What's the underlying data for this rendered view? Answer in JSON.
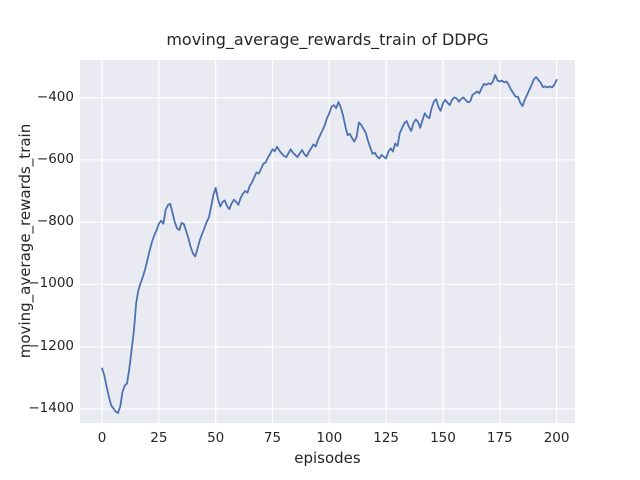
{
  "chart_data": {
    "type": "line",
    "title": "moving_average_rewards_train of DDPG",
    "xlabel": "episodes",
    "ylabel": "moving_average_rewards_train",
    "grid": true,
    "legend": "none",
    "xlim": [
      -9.7,
      208.1
    ],
    "ylim": [
      -1445,
      -279
    ],
    "xticks": {
      "values": [
        0,
        25,
        50,
        75,
        100,
        125,
        150,
        175,
        200
      ],
      "labels": [
        "0",
        "25",
        "50",
        "75",
        "100",
        "125",
        "150",
        "175",
        "200"
      ]
    },
    "yticks": {
      "values": [
        -400,
        -600,
        -800,
        -1000,
        -1200,
        -1400
      ],
      "labels": [
        "−400",
        "−600",
        "−800",
        "−1000",
        "−1200",
        "−1400"
      ]
    },
    "style": {
      "figure_bg": "#FFFFFF",
      "axes_bg": "#EAEAF2",
      "grid_color": "#FFFFFF",
      "line_color": "#4C72B0",
      "text_color": "#262626"
    },
    "series": [
      {
        "name": "moving_average_rewards_train",
        "color": "#4C72B0",
        "x_start": 0,
        "x_step": 1,
        "values": [
          -1270,
          -1292,
          -1328,
          -1360,
          -1388,
          -1398,
          -1408,
          -1413,
          -1392,
          -1345,
          -1325,
          -1318,
          -1270,
          -1210,
          -1150,
          -1060,
          -1018,
          -995,
          -975,
          -950,
          -920,
          -890,
          -862,
          -842,
          -826,
          -805,
          -795,
          -805,
          -760,
          -745,
          -741,
          -770,
          -800,
          -820,
          -825,
          -802,
          -806,
          -828,
          -852,
          -880,
          -900,
          -910,
          -885,
          -858,
          -838,
          -820,
          -800,
          -785,
          -750,
          -713,
          -690,
          -725,
          -750,
          -735,
          -730,
          -748,
          -758,
          -740,
          -728,
          -735,
          -744,
          -722,
          -708,
          -700,
          -705,
          -683,
          -672,
          -655,
          -640,
          -644,
          -628,
          -612,
          -608,
          -592,
          -580,
          -566,
          -572,
          -558,
          -570,
          -579,
          -587,
          -591,
          -579,
          -566,
          -577,
          -584,
          -591,
          -579,
          -568,
          -581,
          -589,
          -574,
          -563,
          -550,
          -557,
          -536,
          -520,
          -505,
          -488,
          -465,
          -450,
          -429,
          -424,
          -434,
          -414,
          -430,
          -456,
          -490,
          -520,
          -516,
          -530,
          -541,
          -526,
          -480,
          -487,
          -500,
          -512,
          -538,
          -560,
          -580,
          -577,
          -589,
          -595,
          -584,
          -590,
          -595,
          -573,
          -563,
          -573,
          -547,
          -555,
          -514,
          -498,
          -482,
          -475,
          -493,
          -507,
          -482,
          -470,
          -477,
          -497,
          -472,
          -450,
          -461,
          -466,
          -434,
          -413,
          -405,
          -429,
          -442,
          -418,
          -407,
          -416,
          -424,
          -407,
          -399,
          -402,
          -413,
          -404,
          -399,
          -408,
          -415,
          -412,
          -391,
          -386,
          -380,
          -386,
          -370,
          -356,
          -359,
          -354,
          -357,
          -348,
          -327,
          -345,
          -348,
          -345,
          -351,
          -348,
          -360,
          -375,
          -386,
          -397,
          -397,
          -416,
          -427,
          -407,
          -391,
          -375,
          -359,
          -341,
          -334,
          -343,
          -352,
          -366,
          -364,
          -367,
          -364,
          -367,
          -359,
          -343
        ]
      }
    ]
  }
}
